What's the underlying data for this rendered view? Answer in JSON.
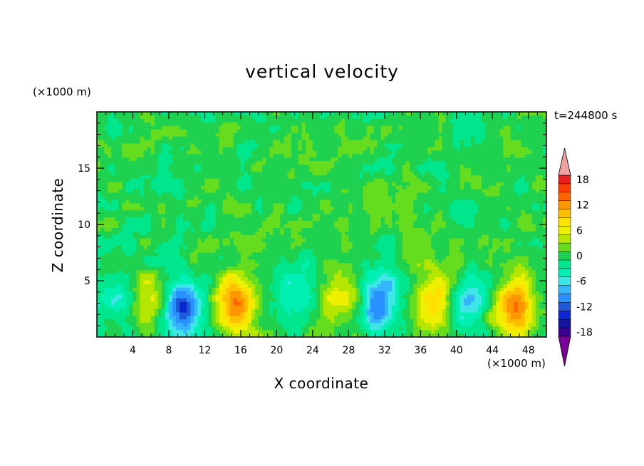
{
  "chart_data": {
    "type": "heatmap",
    "title": "vertical velocity",
    "xlabel": "X coordinate",
    "ylabel": "Z coordinate",
    "x_unit": "(×1000 m)",
    "y_unit": "(×1000 m)",
    "time_label": "t=244800 s",
    "xlim": [
      0,
      50
    ],
    "ylim": [
      0,
      20
    ],
    "x_ticks": [
      "4",
      "8",
      "12",
      "16",
      "20",
      "24",
      "28",
      "32",
      "36",
      "40",
      "44",
      "48"
    ],
    "y_ticks": [
      "5",
      "10",
      "15"
    ],
    "colorbar": {
      "range": [
        -21,
        21
      ],
      "labels": [
        "18",
        "12",
        "6",
        "0",
        "-6",
        "-12",
        "-18"
      ],
      "extend": "both",
      "colors": [
        "#7a009a",
        "#3a0090",
        "#1414a0",
        "#0a28d2",
        "#1e5ad7",
        "#2890ff",
        "#35b4ff",
        "#3ee6e6",
        "#00f0b4",
        "#00e68c",
        "#1ed250",
        "#66dc1e",
        "#b4e600",
        "#eef000",
        "#ffe100",
        "#ffbe00",
        "#ff9600",
        "#ff6400",
        "#ff3c00",
        "#e61e1e",
        "#f0a0a0"
      ]
    },
    "features": [
      {
        "x": 3,
        "z": 3,
        "w": -5
      },
      {
        "x": 5.5,
        "z": 3,
        "w": 7
      },
      {
        "x": 9.5,
        "z": 2.5,
        "w": -14
      },
      {
        "x": 15.5,
        "z": 3,
        "w": 13
      },
      {
        "x": 21.5,
        "z": 4,
        "w": -6
      },
      {
        "x": 27,
        "z": 4,
        "w": 6
      },
      {
        "x": 31.5,
        "z": 3,
        "w": -11
      },
      {
        "x": 37.5,
        "z": 3.5,
        "w": 8
      },
      {
        "x": 41.5,
        "z": 3,
        "w": -6
      },
      {
        "x": 46.5,
        "z": 2.5,
        "w": 13
      }
    ]
  }
}
